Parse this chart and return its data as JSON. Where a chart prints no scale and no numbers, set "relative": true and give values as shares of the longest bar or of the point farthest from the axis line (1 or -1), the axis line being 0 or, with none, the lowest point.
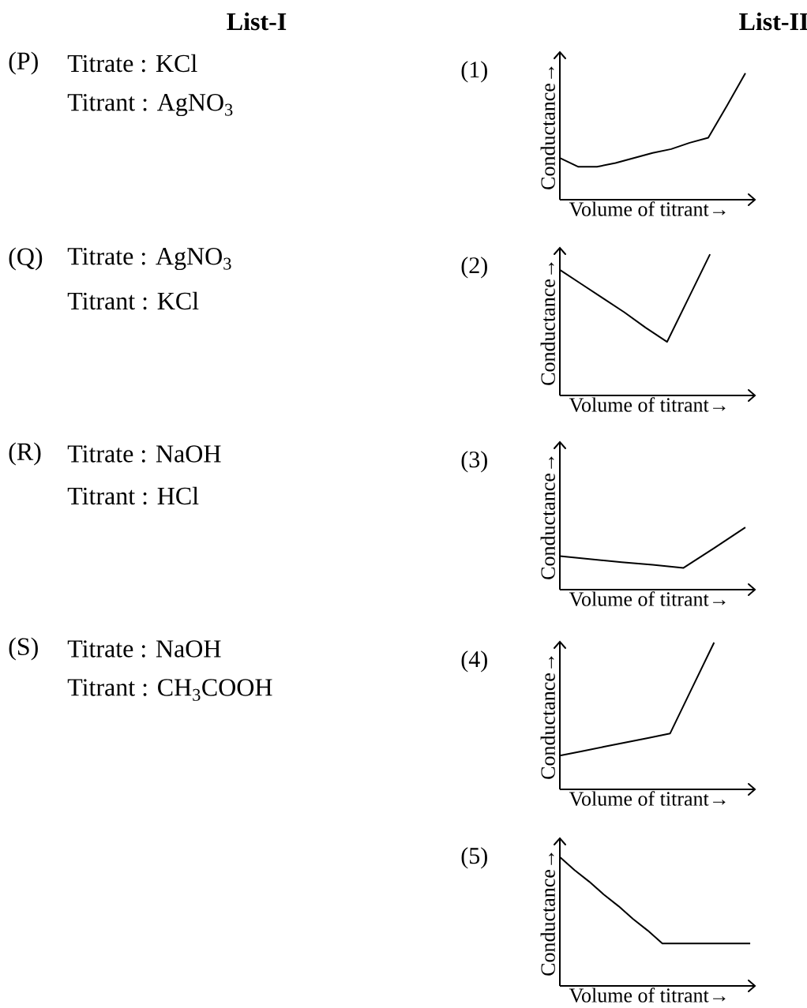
{
  "chart_data": [
    {
      "type": "other",
      "title": "List-I",
      "annotations": [
        "List-II",
        "(P)",
        "Titrate : KCl",
        "Titrant : AgNO$_{3}$",
        "(Q)",
        "Titrate : AgNO$_{3}$",
        "Titrant : KCl",
        "(R)",
        "Titrate : NaOH",
        "Titrant : HCl",
        "(S)",
        "Titrate : NaOH",
        "Titrant : CH$_{3}$COOH"
      ]
    },
    {
      "type": "line",
      "title": "(1)",
      "xlabel": "Volume of titrant→",
      "ylabel": "Conductance→",
      "relative": true,
      "color": "#000000",
      "categories": [
        null,
        null,
        null,
        null,
        null,
        null,
        null,
        null,
        null,
        null,
        null
      ],
      "values": [
        0.33,
        0.26,
        0.26,
        0.29,
        0.33,
        0.37,
        0.4,
        0.45,
        0.49,
        0.74,
        1
      ]
    },
    {
      "type": "line",
      "title": "(2)",
      "xlabel": "Volume of titrant→",
      "ylabel": "Conductance→",
      "relative": true,
      "color": "#000000",
      "categories": [
        null,
        null,
        null,
        null,
        null,
        null,
        null,
        null
      ],
      "values": [
        0.89,
        0.79,
        0.69,
        0.59,
        0.48,
        0.38,
        0.69,
        1
      ]
    },
    {
      "type": "line",
      "title": "(3)",
      "xlabel": "Volume of titrant→",
      "ylabel": "Conductance→",
      "relative": true,
      "color": "#000000",
      "categories": [
        null,
        null,
        null,
        null,
        null,
        null,
        null
      ],
      "values": [
        0.54,
        0.49,
        0.44,
        0.4,
        0.35,
        0.67,
        1
      ]
    },
    {
      "type": "line",
      "title": "(4)",
      "xlabel": "Volume of titrant→",
      "ylabel": "Conductance→",
      "relative": true,
      "color": "#000000",
      "categories": [
        null,
        null,
        null,
        null,
        null,
        null,
        null,
        null
      ],
      "values": [
        0.23,
        0.26,
        0.29,
        0.32,
        0.35,
        0.38,
        0.69,
        1
      ]
    },
    {
      "type": "line",
      "title": "(5)",
      "xlabel": "Volume of titrant→",
      "ylabel": "Conductance→",
      "relative": true,
      "color": "#000000",
      "categories": [
        null,
        null,
        null,
        null,
        null,
        null,
        null,
        null,
        null,
        null,
        null,
        null,
        null,
        null
      ],
      "values": [
        1,
        0.9,
        0.81,
        0.71,
        0.62,
        0.52,
        0.43,
        0.33,
        0.33,
        0.33,
        0.33,
        0.33,
        0.33,
        0.33
      ]
    }
  ]
}
